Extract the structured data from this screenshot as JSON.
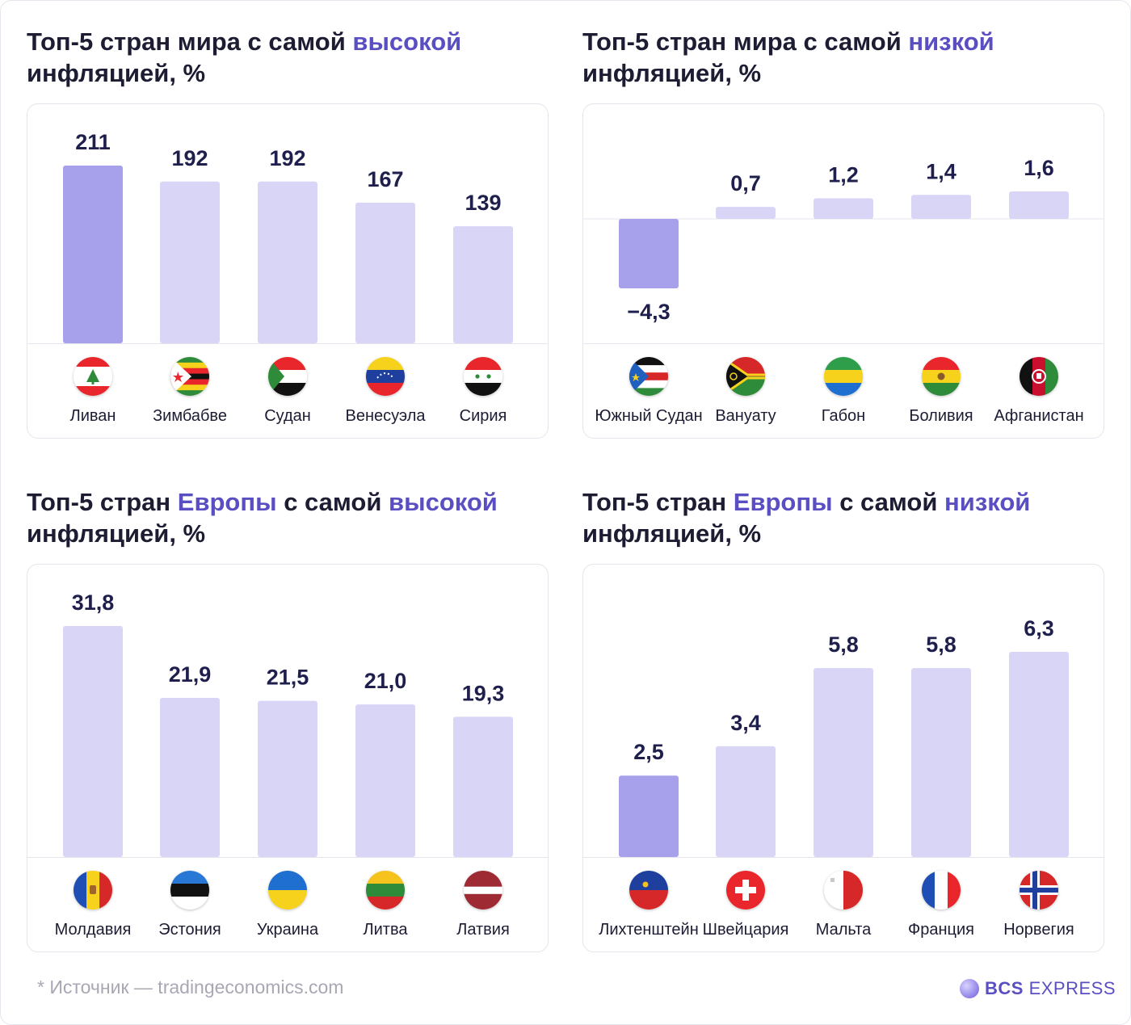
{
  "colors": {
    "bar_highlight": "#a7a1ec",
    "bar_normal": "#d8d5f6",
    "value_text": "#1f1f4d",
    "accent": "#5a4fc2"
  },
  "chart_data": [
    {
      "type": "bar",
      "title_parts": [
        "Топ-5 стран мира с самой ",
        "высокой",
        "",
        "",
        " инфляцией, %"
      ],
      "categories": [
        "Ливан",
        "Зимбабве",
        "Судан",
        "Венесуэла",
        "Сирия"
      ],
      "values": [
        211,
        192,
        192,
        167,
        139
      ],
      "value_labels": [
        "211",
        "192",
        "192",
        "167",
        "139"
      ],
      "flags": [
        "lebanon-flag-icon",
        "zimbabwe-flag-icon",
        "sudan-flag-icon",
        "venezuela-flag-icon",
        "syria-flag-icon"
      ],
      "highlight": 0
    },
    {
      "type": "bar",
      "title_parts": [
        "Топ-5 стран мира с самой ",
        "низкой",
        "",
        "",
        " инфляцией, %"
      ],
      "categories": [
        "Южный Судан",
        "Вануату",
        "Габон",
        "Боливия",
        "Афганистан"
      ],
      "values": [
        -4.3,
        0.7,
        1.2,
        1.4,
        1.6
      ],
      "value_labels": [
        "−4,3",
        "0,7",
        "1,2",
        "1,4",
        "1,6"
      ],
      "flags": [
        "south-sudan-flag-icon",
        "vanuatu-flag-icon",
        "gabon-flag-icon",
        "bolivia-flag-icon",
        "afghanistan-flag-icon"
      ],
      "highlight": 0
    },
    {
      "type": "bar",
      "title_parts": [
        "Топ-5 стран ",
        "Европы",
        " с самой ",
        "высокой",
        " инфляцией, %"
      ],
      "categories": [
        "Молдавия",
        "Эстония",
        "Украина",
        "Литва",
        "Латвия"
      ],
      "values": [
        31.8,
        21.9,
        21.5,
        21.0,
        19.3
      ],
      "value_labels": [
        "31,8",
        "21,9",
        "21,5",
        "21,0",
        "19,3"
      ],
      "flags": [
        "moldova-flag-icon",
        "estonia-flag-icon",
        "ukraine-flag-icon",
        "lithuania-flag-icon",
        "latvia-flag-icon"
      ],
      "highlight": -1
    },
    {
      "type": "bar",
      "title_parts": [
        "Топ-5 стран ",
        "Европы",
        " с самой ",
        "низкой",
        " инфляцией, %"
      ],
      "categories": [
        "Лихтенштейн",
        "Швейцария",
        "Мальта",
        "Франция",
        "Норвегия"
      ],
      "values": [
        2.5,
        3.4,
        5.8,
        5.8,
        6.3
      ],
      "value_labels": [
        "2,5",
        "3,4",
        "5,8",
        "5,8",
        "6,3"
      ],
      "flags": [
        "liechtenstein-flag-icon",
        "switzerland-flag-icon",
        "malta-flag-icon",
        "france-flag-icon",
        "norway-flag-icon"
      ],
      "highlight": 0
    }
  ],
  "footer": {
    "source": "* Источник — tradingeconomics.com",
    "logo_bold": "BCS",
    "logo_light": " EXPRESS"
  }
}
